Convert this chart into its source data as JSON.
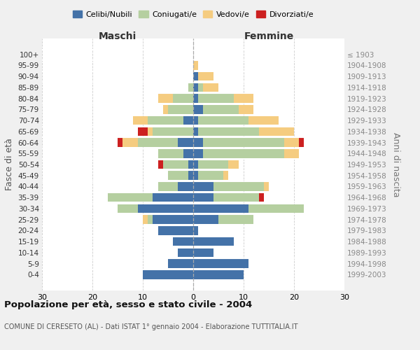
{
  "age_groups": [
    "100+",
    "95-99",
    "90-94",
    "85-89",
    "80-84",
    "75-79",
    "70-74",
    "65-69",
    "60-64",
    "55-59",
    "50-54",
    "45-49",
    "40-44",
    "35-39",
    "30-34",
    "25-29",
    "20-24",
    "15-19",
    "10-14",
    "5-9",
    "0-4"
  ],
  "birth_years": [
    "≤ 1903",
    "1904-1908",
    "1909-1913",
    "1914-1918",
    "1919-1923",
    "1924-1928",
    "1929-1933",
    "1934-1938",
    "1939-1943",
    "1944-1948",
    "1949-1953",
    "1954-1958",
    "1959-1963",
    "1964-1968",
    "1969-1973",
    "1974-1978",
    "1979-1983",
    "1984-1988",
    "1989-1993",
    "1994-1998",
    "1999-2003"
  ],
  "colors": {
    "celibe": "#4472a8",
    "coniugato": "#b5cfa0",
    "vedovo": "#f5cc80",
    "divorziato": "#cc2020"
  },
  "maschi": {
    "celibe": [
      0,
      0,
      0,
      0,
      0,
      0,
      2,
      0,
      3,
      2,
      1,
      1,
      3,
      8,
      11,
      8,
      7,
      4,
      3,
      5,
      10
    ],
    "coniugato": [
      0,
      0,
      0,
      1,
      4,
      5,
      7,
      8,
      8,
      5,
      5,
      4,
      4,
      9,
      4,
      1,
      0,
      0,
      0,
      0,
      0
    ],
    "vedovo": [
      0,
      0,
      0,
      0,
      3,
      1,
      3,
      1,
      3,
      0,
      0,
      0,
      0,
      0,
      0,
      1,
      0,
      0,
      0,
      0,
      0
    ],
    "divorziato": [
      0,
      0,
      0,
      0,
      0,
      0,
      0,
      2,
      1,
      0,
      1,
      0,
      0,
      0,
      0,
      0,
      0,
      0,
      0,
      0,
      0
    ]
  },
  "femmine": {
    "nubile": [
      0,
      0,
      1,
      1,
      1,
      2,
      1,
      1,
      2,
      2,
      1,
      1,
      4,
      4,
      11,
      5,
      1,
      8,
      4,
      11,
      10
    ],
    "coniugata": [
      0,
      0,
      0,
      1,
      7,
      7,
      10,
      12,
      16,
      16,
      6,
      5,
      10,
      9,
      11,
      7,
      0,
      0,
      0,
      0,
      0
    ],
    "vedova": [
      0,
      1,
      3,
      3,
      4,
      3,
      6,
      7,
      3,
      3,
      2,
      1,
      1,
      0,
      0,
      0,
      0,
      0,
      0,
      0,
      0
    ],
    "divorziata": [
      0,
      0,
      0,
      0,
      0,
      0,
      0,
      0,
      1,
      0,
      0,
      0,
      0,
      1,
      0,
      0,
      0,
      0,
      0,
      0,
      0
    ]
  },
  "xlim": 30,
  "title": "Popolazione per età, sesso e stato civile - 2004",
  "subtitle": "COMUNE DI CERESETO (AL) - Dati ISTAT 1° gennaio 2004 - Elaborazione TUTTITALIA.IT",
  "xlabel_left": "Maschi",
  "xlabel_right": "Femmine",
  "ylabel_left": "Fasce di età",
  "ylabel_right": "Anni di nascita",
  "legend_labels": [
    "Celibi/Nubili",
    "Coniugati/e",
    "Vedovi/e",
    "Divorziati/e"
  ],
  "background_color": "#f0f0f0",
  "plot_background": "#ffffff"
}
